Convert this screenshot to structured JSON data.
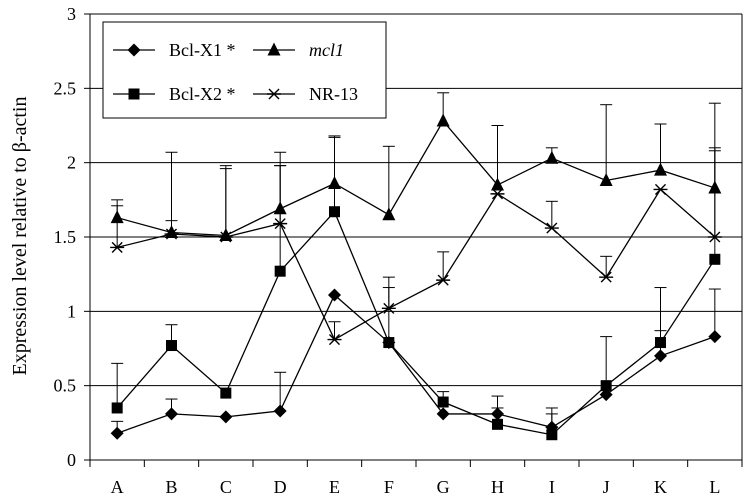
{
  "chart_data": {
    "type": "line",
    "ylabel": "Expression level relative to β-actin",
    "xlabel": "",
    "ylim": [
      0,
      3
    ],
    "yticks": [
      "0",
      "0.5",
      "1",
      "1.5",
      "2",
      "2.5",
      "3"
    ],
    "grid": "horizontal",
    "legend_position": "top-left",
    "categories": [
      "A",
      "B",
      "C",
      "D",
      "E",
      "F",
      "G",
      "H",
      "I",
      "J",
      "K",
      "L"
    ],
    "series": [
      {
        "name": "Bcl-X1 *",
        "marker": "diamond",
        "values": [
          0.18,
          0.31,
          0.29,
          0.33,
          1.11,
          0.79,
          0.31,
          0.31,
          0.22,
          0.44,
          0.7,
          0.83
        ],
        "error_upper": [
          0.26,
          0.41,
          null,
          0.59,
          null,
          null,
          null,
          0.43,
          0.35,
          null,
          0.87,
          1.15
        ]
      },
      {
        "name": "Bcl-X2 *",
        "marker": "square",
        "values": [
          0.35,
          0.77,
          0.45,
          1.27,
          1.67,
          0.79,
          0.39,
          0.24,
          0.17,
          0.5,
          0.79,
          1.35
        ],
        "error_upper": [
          0.65,
          0.91,
          null,
          1.98,
          2.17,
          1.23,
          0.46,
          0.35,
          0.31,
          0.83,
          1.16,
          2.08
        ]
      },
      {
        "name": "mcl1",
        "name_style": "italic",
        "marker": "triangle",
        "values": [
          1.63,
          1.53,
          1.51,
          1.69,
          1.86,
          1.65,
          2.28,
          1.85,
          2.03,
          1.88,
          1.95,
          1.83
        ],
        "error_upper": [
          1.75,
          2.07,
          1.98,
          2.07,
          2.18,
          2.11,
          2.47,
          2.25,
          2.1,
          2.39,
          2.26,
          2.4
        ]
      },
      {
        "name": "NR-13",
        "marker": "star",
        "values": [
          1.43,
          1.52,
          1.5,
          1.59,
          0.81,
          1.02,
          1.21,
          1.79,
          1.56,
          1.23,
          1.82,
          1.5
        ],
        "error_upper": [
          1.71,
          1.61,
          1.96,
          1.98,
          0.93,
          1.16,
          1.4,
          null,
          1.74,
          1.37,
          null,
          2.1
        ]
      }
    ]
  }
}
